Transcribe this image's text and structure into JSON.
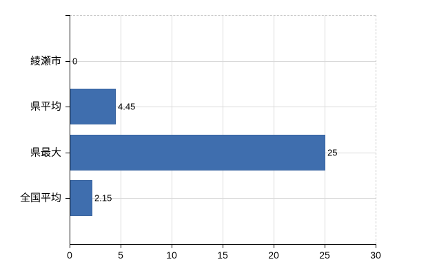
{
  "chart_data": {
    "type": "bar",
    "orientation": "horizontal",
    "title": "",
    "xlabel": "",
    "ylabel": "",
    "categories": [
      "綾瀬市",
      "県平均",
      "県最大",
      "全国平均"
    ],
    "values": [
      0,
      4.45,
      25,
      2.15
    ],
    "value_labels": [
      "0",
      "4.45",
      "25",
      "2.15"
    ],
    "xlim": [
      0,
      30
    ],
    "x_ticks": [
      0,
      5,
      10,
      15,
      20,
      25,
      30
    ],
    "grid": true,
    "legend": false,
    "bar_color": "#3f6eae",
    "bar_border_color": "#35619e",
    "axis_color": "#000000",
    "gridline_color": "#d9d9d9",
    "plot_border_color": "#c9c9c9",
    "background_color": "#ffffff",
    "text_color": "#000000"
  }
}
